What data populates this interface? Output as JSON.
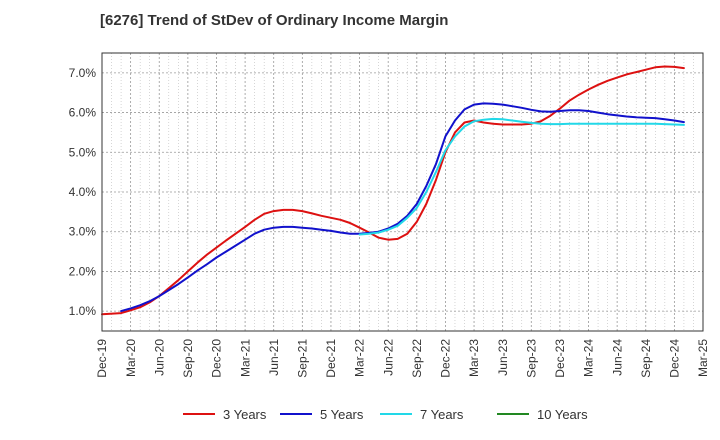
{
  "chart_data": {
    "type": "line",
    "title": "[6276]  Trend of StDev of Ordinary Income Margin",
    "xlabel": "",
    "ylabel": "",
    "x_ticks": [
      "Dec-19",
      "Mar-20",
      "Jun-20",
      "Sep-20",
      "Dec-20",
      "Mar-21",
      "Jun-21",
      "Sep-21",
      "Dec-21",
      "Mar-22",
      "Jun-22",
      "Sep-22",
      "Dec-22",
      "Mar-23",
      "Jun-23",
      "Sep-23",
      "Dec-23",
      "Mar-24",
      "Jun-24",
      "Sep-24",
      "Dec-24",
      "Mar-25"
    ],
    "y_ticks": [
      "1.0%",
      "2.0%",
      "3.0%",
      "4.0%",
      "5.0%",
      "6.0%",
      "7.0%"
    ],
    "ylim": [
      0.5,
      7.5
    ],
    "y_tick_values": [
      1,
      2,
      3,
      4,
      5,
      6,
      7
    ],
    "grid": true,
    "legend_position": "bottom",
    "series": [
      {
        "name": "3 Years",
        "color": "#dd1111",
        "points": [
          [
            "Dec-19",
            0.92
          ],
          [
            "Feb-20",
            0.95
          ],
          [
            "Mar-20",
            1.02
          ],
          [
            "Apr-20",
            1.1
          ],
          [
            "May-20",
            1.22
          ],
          [
            "Jun-20",
            1.38
          ],
          [
            "Jul-20",
            1.58
          ],
          [
            "Aug-20",
            1.78
          ],
          [
            "Sep-20",
            2.0
          ],
          [
            "Oct-20",
            2.22
          ],
          [
            "Nov-20",
            2.42
          ],
          [
            "Dec-20",
            2.6
          ],
          [
            "Jan-21",
            2.78
          ],
          [
            "Feb-21",
            2.95
          ],
          [
            "Mar-21",
            3.12
          ],
          [
            "Apr-21",
            3.3
          ],
          [
            "May-21",
            3.45
          ],
          [
            "Jun-21",
            3.52
          ],
          [
            "Jul-21",
            3.55
          ],
          [
            "Aug-21",
            3.55
          ],
          [
            "Sep-21",
            3.52
          ],
          [
            "Oct-21",
            3.46
          ],
          [
            "Nov-21",
            3.4
          ],
          [
            "Dec-21",
            3.35
          ],
          [
            "Jan-22",
            3.3
          ],
          [
            "Feb-22",
            3.22
          ],
          [
            "Mar-22",
            3.1
          ],
          [
            "Apr-22",
            2.98
          ],
          [
            "May-22",
            2.85
          ],
          [
            "Jun-22",
            2.8
          ],
          [
            "Jul-22",
            2.82
          ],
          [
            "Aug-22",
            2.95
          ],
          [
            "Sep-22",
            3.25
          ],
          [
            "Oct-22",
            3.7
          ],
          [
            "Nov-22",
            4.3
          ],
          [
            "Dec-22",
            5.0
          ],
          [
            "Jan-23",
            5.5
          ],
          [
            "Feb-23",
            5.75
          ],
          [
            "Mar-23",
            5.8
          ],
          [
            "Apr-23",
            5.75
          ],
          [
            "May-23",
            5.72
          ],
          [
            "Jun-23",
            5.7
          ],
          [
            "Jul-23",
            5.7
          ],
          [
            "Aug-23",
            5.7
          ],
          [
            "Sep-23",
            5.72
          ],
          [
            "Oct-23",
            5.78
          ],
          [
            "Nov-23",
            5.92
          ],
          [
            "Dec-23",
            6.1
          ],
          [
            "Jan-24",
            6.3
          ],
          [
            "Feb-24",
            6.45
          ],
          [
            "Mar-24",
            6.58
          ],
          [
            "Apr-24",
            6.7
          ],
          [
            "May-24",
            6.8
          ],
          [
            "Jun-24",
            6.88
          ],
          [
            "Jul-24",
            6.96
          ],
          [
            "Aug-24",
            7.02
          ],
          [
            "Sep-24",
            7.08
          ],
          [
            "Oct-24",
            7.14
          ],
          [
            "Nov-24",
            7.16
          ],
          [
            "Dec-24",
            7.15
          ],
          [
            "Jan-25",
            7.12
          ]
        ]
      },
      {
        "name": "5 Years",
        "color": "#1111cc",
        "points": [
          [
            "Feb-20",
            1.0
          ],
          [
            "Mar-20",
            1.07
          ],
          [
            "Apr-20",
            1.15
          ],
          [
            "May-20",
            1.25
          ],
          [
            "Jun-20",
            1.38
          ],
          [
            "Jul-20",
            1.53
          ],
          [
            "Aug-20",
            1.68
          ],
          [
            "Sep-20",
            1.85
          ],
          [
            "Oct-20",
            2.02
          ],
          [
            "Nov-20",
            2.18
          ],
          [
            "Dec-20",
            2.35
          ],
          [
            "Jan-21",
            2.5
          ],
          [
            "Feb-21",
            2.65
          ],
          [
            "Mar-21",
            2.8
          ],
          [
            "Apr-21",
            2.95
          ],
          [
            "May-21",
            3.05
          ],
          [
            "Jun-21",
            3.1
          ],
          [
            "Jul-21",
            3.12
          ],
          [
            "Aug-21",
            3.12
          ],
          [
            "Sep-21",
            3.1
          ],
          [
            "Oct-21",
            3.08
          ],
          [
            "Nov-21",
            3.05
          ],
          [
            "Dec-21",
            3.02
          ],
          [
            "Jan-22",
            2.98
          ],
          [
            "Feb-22",
            2.95
          ],
          [
            "Mar-22",
            2.95
          ],
          [
            "Apr-22",
            2.97
          ],
          [
            "May-22",
            3.0
          ],
          [
            "Jun-22",
            3.08
          ],
          [
            "Jul-22",
            3.2
          ],
          [
            "Aug-22",
            3.4
          ],
          [
            "Sep-22",
            3.7
          ],
          [
            "Oct-22",
            4.15
          ],
          [
            "Nov-22",
            4.7
          ],
          [
            "Dec-22",
            5.4
          ],
          [
            "Jan-23",
            5.8
          ],
          [
            "Feb-23",
            6.08
          ],
          [
            "Mar-23",
            6.2
          ],
          [
            "Apr-23",
            6.23
          ],
          [
            "May-23",
            6.22
          ],
          [
            "Jun-23",
            6.2
          ],
          [
            "Jul-23",
            6.16
          ],
          [
            "Aug-23",
            6.12
          ],
          [
            "Sep-23",
            6.07
          ],
          [
            "Oct-23",
            6.03
          ],
          [
            "Nov-23",
            6.02
          ],
          [
            "Dec-23",
            6.04
          ],
          [
            "Jan-24",
            6.06
          ],
          [
            "Feb-24",
            6.06
          ],
          [
            "Mar-24",
            6.04
          ],
          [
            "Apr-24",
            6.0
          ],
          [
            "May-24",
            5.96
          ],
          [
            "Jun-24",
            5.93
          ],
          [
            "Jul-24",
            5.9
          ],
          [
            "Aug-24",
            5.88
          ],
          [
            "Sep-24",
            5.87
          ],
          [
            "Oct-24",
            5.86
          ],
          [
            "Nov-24",
            5.83
          ],
          [
            "Dec-24",
            5.8
          ],
          [
            "Jan-25",
            5.76
          ]
        ]
      },
      {
        "name": "7 Years",
        "color": "#22d8e8",
        "points": [
          [
            "Mar-22",
            2.93
          ],
          [
            "Apr-22",
            2.95
          ],
          [
            "May-22",
            2.98
          ],
          [
            "Jun-22",
            3.05
          ],
          [
            "Jul-22",
            3.15
          ],
          [
            "Aug-22",
            3.35
          ],
          [
            "Sep-22",
            3.6
          ],
          [
            "Oct-22",
            4.0
          ],
          [
            "Nov-22",
            4.5
          ],
          [
            "Dec-22",
            5.05
          ],
          [
            "Jan-23",
            5.4
          ],
          [
            "Feb-23",
            5.65
          ],
          [
            "Mar-23",
            5.78
          ],
          [
            "Apr-23",
            5.82
          ],
          [
            "May-23",
            5.84
          ],
          [
            "Jun-23",
            5.83
          ],
          [
            "Jul-23",
            5.8
          ],
          [
            "Aug-23",
            5.77
          ],
          [
            "Sep-23",
            5.74
          ],
          [
            "Oct-23",
            5.72
          ],
          [
            "Nov-23",
            5.71
          ],
          [
            "Dec-23",
            5.71
          ],
          [
            "Jan-24",
            5.72
          ],
          [
            "Feb-24",
            5.72
          ],
          [
            "Mar-24",
            5.72
          ],
          [
            "Apr-24",
            5.72
          ],
          [
            "May-24",
            5.72
          ],
          [
            "Jun-24",
            5.72
          ],
          [
            "Jul-24",
            5.72
          ],
          [
            "Aug-24",
            5.72
          ],
          [
            "Sep-24",
            5.72
          ],
          [
            "Oct-24",
            5.72
          ],
          [
            "Nov-24",
            5.71
          ],
          [
            "Dec-24",
            5.7
          ],
          [
            "Jan-25",
            5.69
          ]
        ]
      },
      {
        "name": "10 Years",
        "color": "#228822",
        "points": []
      }
    ]
  }
}
